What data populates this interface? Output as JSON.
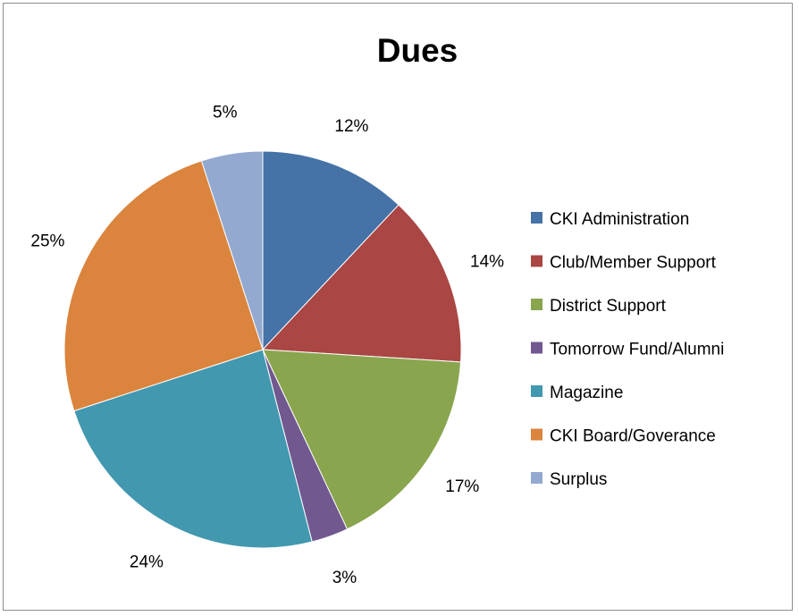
{
  "chart_data": {
    "type": "pie",
    "title": "Dues",
    "legend_position": "right",
    "categories": [
      "CKI Administration",
      "Club/Member Support",
      "District Support",
      "Tomorrow Fund/Alumni",
      "Magazine",
      "CKI Board/Goverance",
      "Surplus"
    ],
    "values": [
      12,
      14,
      17,
      3,
      24,
      25,
      5
    ],
    "labels": [
      "12%",
      "14%",
      "17%",
      "3%",
      "24%",
      "25%",
      "5%"
    ],
    "colors": [
      "#4572A7",
      "#AA4643",
      "#89A54E",
      "#71588F",
      "#4198AF",
      "#DB843D",
      "#93A9CF"
    ]
  }
}
